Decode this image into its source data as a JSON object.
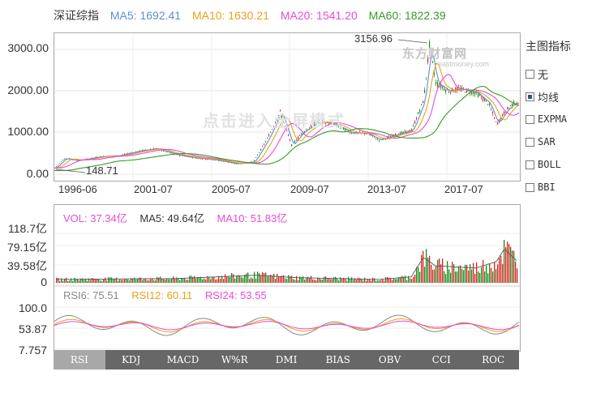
{
  "header": {
    "title": "深证综指",
    "ma5": "MA5: 1692.41",
    "ma10": "MA10: 1630.21",
    "ma20": "MA20: 1541.20",
    "ma60": "MA60: 1822.39"
  },
  "colors": {
    "ma5": "#5b8fd6",
    "ma10": "#e8a21a",
    "ma20": "#e84ad8",
    "ma60": "#3a9a2a",
    "up": "#e02020",
    "down": "#1a8a1a",
    "rsi6": "#888888",
    "rsi12": "#e8a21a",
    "rsi24": "#e84ad8"
  },
  "price_chart": {
    "y_ticks": [
      "3000.00",
      "2000.00",
      "1000.00",
      "0.00"
    ],
    "x_ticks": [
      "1996-06",
      "2001-07",
      "2005-07",
      "2009-07",
      "2013-07",
      "2017-07"
    ],
    "high_label": "3156.96",
    "low_label": "148.71",
    "watermark_logo": "东方财富网",
    "watermark_url": "eastmoney.com",
    "watermark_fullscreen": "点击进入全屏模式"
  },
  "side_panel": {
    "title": "主图指标",
    "items": [
      {
        "label": "无",
        "checked": false
      },
      {
        "label": "均线",
        "checked": true
      },
      {
        "label": "EXPMA",
        "checked": false
      },
      {
        "label": "SAR",
        "checked": false
      },
      {
        "label": "BOLL",
        "checked": false
      },
      {
        "label": "BBI",
        "checked": false
      }
    ]
  },
  "volume_chart": {
    "vol": "VOL: 37.34亿",
    "ma5": "MA5: 49.64亿",
    "ma10": "MA10: 51.83亿",
    "y_ticks": [
      "118.7亿",
      "79.15亿",
      "39.58亿",
      "0"
    ]
  },
  "rsi_chart": {
    "rsi6": "RSI6: 75.51",
    "rsi12": "RSI12: 60.11",
    "rsi24": "RSI24: 53.55",
    "y_ticks": [
      "100.0",
      "53.87",
      "7.757"
    ]
  },
  "tabs": [
    {
      "label": "RSI",
      "active": true
    },
    {
      "label": "KDJ",
      "active": false
    },
    {
      "label": "MACD",
      "active": false
    },
    {
      "label": "W%R",
      "active": false
    },
    {
      "label": "DMI",
      "active": false
    },
    {
      "label": "BIAS",
      "active": false
    },
    {
      "label": "OBV",
      "active": false
    },
    {
      "label": "CCI",
      "active": false
    },
    {
      "label": "ROC",
      "active": false
    }
  ]
}
